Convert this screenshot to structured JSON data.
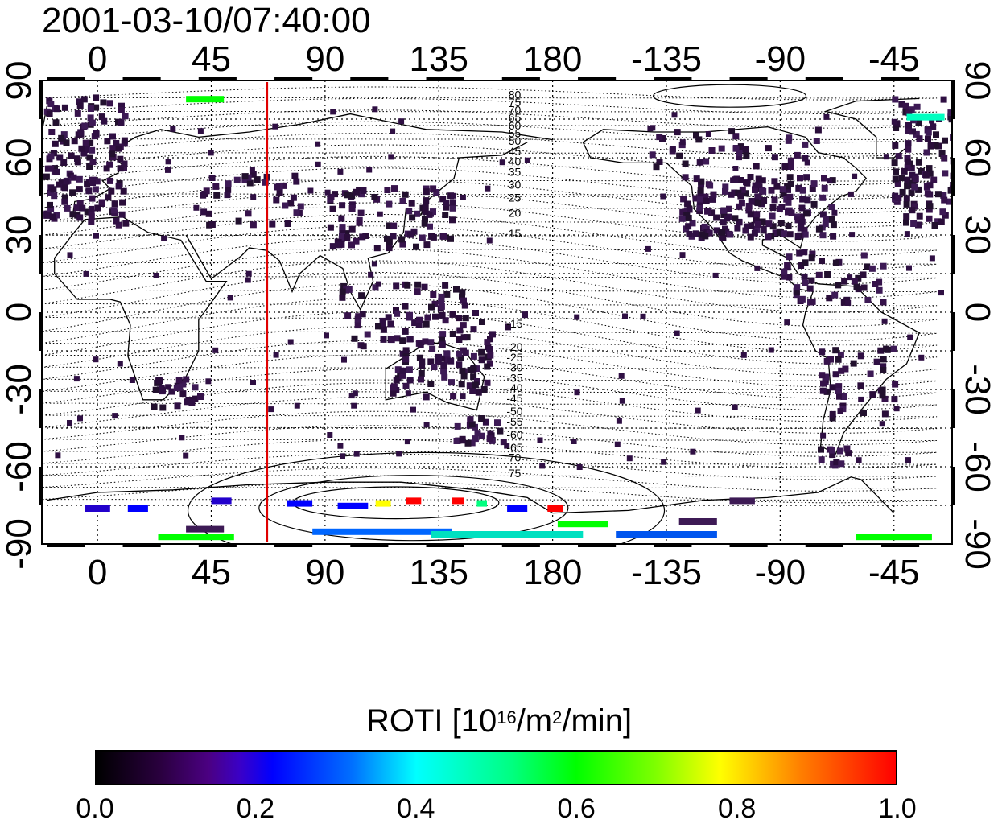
{
  "title": "2001-03-10/07:40:00",
  "map": {
    "lon_ticks": [
      "0",
      "45",
      "90",
      "135",
      "180",
      "-135",
      "-90",
      "-45"
    ],
    "lat_ticks": [
      "90",
      "60",
      "30",
      "0",
      "-30",
      "-60",
      "-90"
    ],
    "north_contour_labels": [
      "80",
      "75",
      "70",
      "65",
      "60",
      "55",
      "50",
      "45",
      "40",
      "35",
      "30",
      "25",
      "20",
      "15"
    ],
    "south_contour_labels": [
      "-15",
      "-20",
      "-25",
      "-30",
      "-35",
      "-40",
      "-45",
      "-50",
      "-55",
      "-60",
      "-65",
      "70",
      "75"
    ],
    "meridian_line_lon": 67,
    "meridian_color": "#e00000"
  },
  "colorbar": {
    "title_main": "ROTI  [10",
    "title_sup1": "16",
    "title_mid": "/m",
    "title_sup2": "2",
    "title_end": "/min]",
    "labels": [
      "0.0",
      "0.2",
      "0.4",
      "0.6",
      "0.8",
      "1.0"
    ],
    "min": 0.0,
    "max": 1.0
  }
}
